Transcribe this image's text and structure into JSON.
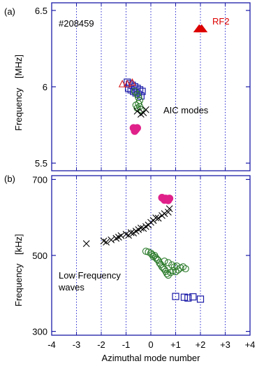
{
  "chart_data": [
    {
      "panel_label": "(a)",
      "type": "scatter",
      "shot_label": "#208459",
      "annotation": "AIC modes",
      "rf_label": "RF2",
      "ylabel_main": "Frequency",
      "ylabel_unit": "[MHz]",
      "ylim": [
        5.45,
        6.55
      ],
      "yticks": [
        5.5,
        6,
        6.5
      ],
      "ytick_labels": [
        "5.5",
        "6",
        "6.5"
      ],
      "xlim": [
        -4,
        4
      ],
      "grid_x": [
        -3,
        -2,
        -1,
        0,
        1,
        2,
        3
      ],
      "series": [
        {
          "marker": "square",
          "color": "#1a1aa8",
          "points": [
            [
              -0.95,
              6.03
            ],
            [
              -0.85,
              6.02
            ],
            [
              -0.75,
              6.01
            ],
            [
              -0.65,
              6.0
            ],
            [
              -0.55,
              5.99
            ],
            [
              -0.45,
              5.98
            ],
            [
              -0.35,
              5.97
            ],
            [
              -0.9,
              5.99
            ],
            [
              -0.8,
              5.98
            ],
            [
              -0.7,
              5.97
            ],
            [
              -0.6,
              5.96
            ],
            [
              -0.5,
              5.95
            ],
            [
              -0.4,
              5.94
            ]
          ]
        },
        {
          "marker": "triangle",
          "color": "#d92020",
          "points": [
            [
              -1.15,
              6.02
            ],
            [
              -0.95,
              6.02
            ],
            [
              -0.75,
              6.03
            ]
          ]
        },
        {
          "marker": "circle",
          "color": "#2a7a2a",
          "points": [
            [
              -0.65,
              5.97
            ],
            [
              -0.55,
              5.95
            ],
            [
              -0.5,
              5.93
            ],
            [
              -0.45,
              5.91
            ],
            [
              -0.5,
              5.89
            ],
            [
              -0.45,
              5.87
            ],
            [
              -0.55,
              5.86
            ],
            [
              -0.6,
              5.88
            ],
            [
              -0.4,
              5.85
            ]
          ]
        },
        {
          "marker": "x",
          "color": "#000000",
          "points": [
            [
              -0.55,
              5.84
            ],
            [
              -0.4,
              5.82
            ],
            [
              -0.3,
              5.83
            ],
            [
              -0.2,
              5.85
            ]
          ]
        },
        {
          "marker": "filled-circle",
          "color": "#e0218a",
          "points": [
            [
              -0.7,
              5.73
            ],
            [
              -0.6,
              5.72
            ],
            [
              -0.55,
              5.73
            ],
            [
              -0.65,
              5.71
            ]
          ]
        },
        {
          "marker": "filled-triangle",
          "color": "#dd0000",
          "points": [
            [
              1.95,
              6.38
            ],
            [
              2.05,
              6.38
            ]
          ]
        }
      ]
    },
    {
      "panel_label": "(b)",
      "type": "scatter",
      "annotation_line1": "Low Frequency",
      "annotation_line2": "waves",
      "ylabel_main": "Frequency",
      "ylabel_unit": "[kHz]",
      "xlabel": "Azimuthal mode number",
      "ylim": [
        290,
        710
      ],
      "yticks": [
        300,
        500,
        700
      ],
      "ytick_labels": [
        "300",
        "500",
        "700"
      ],
      "xlim": [
        -4,
        4
      ],
      "xticks": [
        -4,
        -3,
        -2,
        -1,
        0,
        1,
        2,
        3,
        4
      ],
      "xtick_labels": [
        "-4",
        "-3",
        "-2",
        "-1",
        "0",
        "+1",
        "+2",
        "+3",
        "+4"
      ],
      "grid_x": [
        -3,
        -2,
        -1,
        0,
        1,
        2,
        3
      ],
      "series": [
        {
          "marker": "x",
          "color": "#000000",
          "points": [
            [
              -2.6,
              531
            ],
            [
              -1.9,
              538
            ],
            [
              -1.8,
              535
            ],
            [
              -1.6,
              541
            ],
            [
              -1.4,
              545
            ],
            [
              -1.3,
              548
            ],
            [
              -1.2,
              552
            ],
            [
              -1.0,
              556
            ],
            [
              -0.9,
              553
            ],
            [
              -0.8,
              560
            ],
            [
              -0.7,
              559
            ],
            [
              -0.6,
              564
            ],
            [
              -0.5,
              568
            ],
            [
              -0.4,
              572
            ],
            [
              -0.3,
              571
            ],
            [
              -0.2,
              576
            ],
            [
              -0.1,
              580
            ],
            [
              0.0,
              587
            ],
            [
              0.1,
              592
            ],
            [
              0.2,
              599
            ],
            [
              0.3,
              598
            ],
            [
              0.45,
              605
            ],
            [
              0.55,
              610
            ],
            [
              0.7,
              614
            ],
            [
              0.75,
              623
            ]
          ]
        },
        {
          "marker": "filled-circle",
          "color": "#e0218a",
          "points": [
            [
              0.45,
              652
            ],
            [
              0.6,
              650
            ],
            [
              0.75,
              650
            ],
            [
              0.55,
              646
            ],
            [
              0.7,
              645
            ]
          ]
        },
        {
          "marker": "circle",
          "color": "#2a7a2a",
          "points": [
            [
              -0.2,
              511
            ],
            [
              -0.1,
              509
            ],
            [
              0.0,
              506
            ],
            [
              0.05,
              502
            ],
            [
              0.1,
              497
            ],
            [
              0.15,
              500
            ],
            [
              0.2,
              494
            ],
            [
              0.25,
              490
            ],
            [
              0.3,
              487
            ],
            [
              0.35,
              480
            ],
            [
              0.4,
              476
            ],
            [
              0.45,
              470
            ],
            [
              0.5,
              467
            ],
            [
              0.55,
              463
            ],
            [
              0.6,
              458
            ],
            [
              0.65,
              452
            ],
            [
              0.7,
              448
            ],
            [
              0.8,
              455
            ],
            [
              0.9,
              460
            ],
            [
              1.0,
              457
            ],
            [
              1.1,
              462
            ],
            [
              1.2,
              467
            ],
            [
              1.3,
              470
            ],
            [
              1.4,
              465
            ],
            [
              0.55,
              485
            ],
            [
              0.7,
              481
            ],
            [
              0.85,
              475
            ],
            [
              0.95,
              470
            ],
            [
              1.05,
              472
            ]
          ]
        },
        {
          "marker": "square",
          "color": "#1a1aa8",
          "points": [
            [
              1.0,
              392
            ],
            [
              1.35,
              390
            ],
            [
              1.5,
              388
            ],
            [
              1.7,
              391
            ],
            [
              2.0,
              385
            ]
          ]
        }
      ]
    }
  ]
}
